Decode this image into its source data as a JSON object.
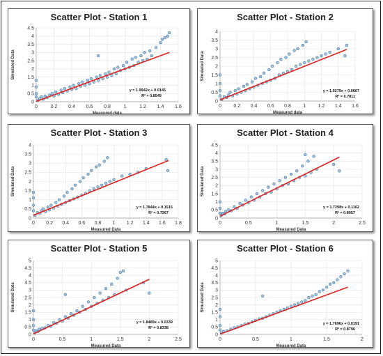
{
  "chart_data": [
    {
      "type": "scatter",
      "title": "Scatter Plot - Station 1",
      "xlabel": "Measured data",
      "ylabel": "Simulated Data",
      "xlim": [
        0,
        1.6
      ],
      "ylim": [
        0,
        4.5
      ],
      "xticks": [
        "0",
        "0.2",
        "0.4",
        "0.6",
        "0.8",
        "1",
        "1.2",
        "1.4",
        "1.6"
      ],
      "yticks": [
        "0",
        "0.5",
        "1",
        "1.5",
        "2",
        "2.5",
        "3",
        "3.5",
        "4",
        "4.5"
      ],
      "trend_equation": "y = 1.9942x + 0.0145",
      "r_squared": "R² = 0.8545",
      "slope": 1.9942,
      "intercept": 0.0145,
      "x_max_data": 1.5,
      "points": [
        [
          0.02,
          0.1
        ],
        [
          0.04,
          0.2
        ],
        [
          0.06,
          0.3
        ],
        [
          0.08,
          0.15
        ],
        [
          0.1,
          0.35
        ],
        [
          0.12,
          0.25
        ],
        [
          0.15,
          0.4
        ],
        [
          0.18,
          0.5
        ],
        [
          0.2,
          0.35
        ],
        [
          0.22,
          0.6
        ],
        [
          0.25,
          0.45
        ],
        [
          0.28,
          0.7
        ],
        [
          0.3,
          0.55
        ],
        [
          0.32,
          0.8
        ],
        [
          0.35,
          0.65
        ],
        [
          0.38,
          0.9
        ],
        [
          0.4,
          0.75
        ],
        [
          0.42,
          1.0
        ],
        [
          0.45,
          0.8
        ],
        [
          0.48,
          1.1
        ],
        [
          0.5,
          0.95
        ],
        [
          0.52,
          1.2
        ],
        [
          0.55,
          1.0
        ],
        [
          0.58,
          1.3
        ],
        [
          0.6,
          1.1
        ],
        [
          0.62,
          1.4
        ],
        [
          0.65,
          1.2
        ],
        [
          0.68,
          1.5
        ],
        [
          0.7,
          1.3
        ],
        [
          0.72,
          1.6
        ],
        [
          0.75,
          1.4
        ],
        [
          0.78,
          1.7
        ],
        [
          0.8,
          1.5
        ],
        [
          0.82,
          1.8
        ],
        [
          0.85,
          1.6
        ],
        [
          0.88,
          2.0
        ],
        [
          0.9,
          1.7
        ],
        [
          0.92,
          2.1
        ],
        [
          0.95,
          1.9
        ],
        [
          0.98,
          2.2
        ],
        [
          1.0,
          2.0
        ],
        [
          1.02,
          2.4
        ],
        [
          1.05,
          2.1
        ],
        [
          1.08,
          2.6
        ],
        [
          1.1,
          2.2
        ],
        [
          1.12,
          2.7
        ],
        [
          1.15,
          2.4
        ],
        [
          1.18,
          2.8
        ],
        [
          1.2,
          2.5
        ],
        [
          1.22,
          3.0
        ],
        [
          1.25,
          2.6
        ],
        [
          1.28,
          3.1
        ],
        [
          1.3,
          2.8
        ],
        [
          1.35,
          3.3
        ],
        [
          1.4,
          3.6
        ],
        [
          1.42,
          3.8
        ],
        [
          1.45,
          3.9
        ],
        [
          1.48,
          4.0
        ],
        [
          1.5,
          4.2
        ],
        [
          0.7,
          2.8
        ],
        [
          0.0,
          0.5
        ],
        [
          0.0,
          0.9
        ],
        [
          0.0,
          1.3
        ],
        [
          0.0,
          0.3
        ]
      ]
    },
    {
      "type": "scatter",
      "title": "Scatter Plot - Station 2",
      "xlabel": "Measured data",
      "ylabel": "Simulated Data",
      "xlim": [
        0,
        1.6
      ],
      "ylim": [
        0,
        4
      ],
      "xticks": [
        "0",
        "0.2",
        "0.4",
        "0.6",
        "0.8",
        "1",
        "1.2",
        "1.4",
        "1.6"
      ],
      "yticks": [
        "0",
        "0.5",
        "1",
        "1.5",
        "2",
        "2.5",
        "3",
        "3.5",
        "4"
      ],
      "trend_equation": "y = 1.9279x + 0.0667",
      "r_squared": "R² = 0.7811",
      "slope": 1.9279,
      "intercept": 0.0667,
      "x_max_data": 1.5,
      "points": [
        [
          0.02,
          0.1
        ],
        [
          0.05,
          0.25
        ],
        [
          0.08,
          0.2
        ],
        [
          0.1,
          0.35
        ],
        [
          0.12,
          0.5
        ],
        [
          0.15,
          0.3
        ],
        [
          0.18,
          0.6
        ],
        [
          0.2,
          0.4
        ],
        [
          0.22,
          0.7
        ],
        [
          0.25,
          0.5
        ],
        [
          0.28,
          0.85
        ],
        [
          0.3,
          0.6
        ],
        [
          0.32,
          0.95
        ],
        [
          0.35,
          0.7
        ],
        [
          0.38,
          1.1
        ],
        [
          0.4,
          0.8
        ],
        [
          0.42,
          1.3
        ],
        [
          0.45,
          0.9
        ],
        [
          0.48,
          1.4
        ],
        [
          0.5,
          1.0
        ],
        [
          0.52,
          1.6
        ],
        [
          0.55,
          1.1
        ],
        [
          0.58,
          1.8
        ],
        [
          0.6,
          1.2
        ],
        [
          0.62,
          2.0
        ],
        [
          0.65,
          1.3
        ],
        [
          0.68,
          2.2
        ],
        [
          0.7,
          1.5
        ],
        [
          0.72,
          2.4
        ],
        [
          0.75,
          1.6
        ],
        [
          0.78,
          2.5
        ],
        [
          0.8,
          1.7
        ],
        [
          0.82,
          2.7
        ],
        [
          0.85,
          1.8
        ],
        [
          0.88,
          2.9
        ],
        [
          0.9,
          2.0
        ],
        [
          0.92,
          3.0
        ],
        [
          0.95,
          2.1
        ],
        [
          0.98,
          3.2
        ],
        [
          1.0,
          2.2
        ],
        [
          1.02,
          3.4
        ],
        [
          1.05,
          2.3
        ],
        [
          1.1,
          2.4
        ],
        [
          1.15,
          2.5
        ],
        [
          1.2,
          2.6
        ],
        [
          1.25,
          2.7
        ],
        [
          1.3,
          2.8
        ],
        [
          1.4,
          3.0
        ],
        [
          1.5,
          3.2
        ],
        [
          1.48,
          2.6
        ],
        [
          0.0,
          0.6
        ],
        [
          0.0,
          1.0
        ],
        [
          0.0,
          1.5
        ],
        [
          0.0,
          0.3
        ]
      ]
    },
    {
      "type": "scatter",
      "title": "Scatter Plot - Station 3",
      "xlabel": "Measured Data",
      "ylabel": "Simulated Data",
      "xlim": [
        0,
        1.8
      ],
      "ylim": [
        0,
        4
      ],
      "xticks": [
        "0",
        "0.2",
        "0.4",
        "0.6",
        "0.8",
        "1",
        "1.2",
        "1.4",
        "1.6",
        "1.8"
      ],
      "yticks": [
        "0",
        "0.5",
        "1",
        "1.5",
        "2",
        "2.5",
        "3",
        "3.5",
        "4"
      ],
      "trend_equation": "y = 1.7844x + 0.1515",
      "r_squared": "R² = 0.7267",
      "slope": 1.7844,
      "intercept": 0.1515,
      "x_max_data": 1.68,
      "points": [
        [
          0.02,
          0.15
        ],
        [
          0.05,
          0.3
        ],
        [
          0.08,
          0.25
        ],
        [
          0.1,
          0.4
        ],
        [
          0.12,
          0.5
        ],
        [
          0.15,
          0.35
        ],
        [
          0.18,
          0.6
        ],
        [
          0.2,
          0.45
        ],
        [
          0.22,
          0.7
        ],
        [
          0.25,
          0.55
        ],
        [
          0.28,
          0.85
        ],
        [
          0.3,
          0.65
        ],
        [
          0.32,
          1.0
        ],
        [
          0.35,
          0.75
        ],
        [
          0.38,
          1.2
        ],
        [
          0.4,
          0.85
        ],
        [
          0.42,
          1.4
        ],
        [
          0.45,
          0.95
        ],
        [
          0.48,
          1.6
        ],
        [
          0.5,
          1.05
        ],
        [
          0.52,
          1.8
        ],
        [
          0.55,
          1.15
        ],
        [
          0.58,
          2.0
        ],
        [
          0.6,
          1.25
        ],
        [
          0.62,
          2.2
        ],
        [
          0.65,
          1.35
        ],
        [
          0.68,
          2.4
        ],
        [
          0.7,
          1.5
        ],
        [
          0.72,
          2.6
        ],
        [
          0.75,
          1.6
        ],
        [
          0.78,
          2.8
        ],
        [
          0.8,
          1.7
        ],
        [
          0.82,
          2.9
        ],
        [
          0.85,
          1.8
        ],
        [
          0.88,
          3.1
        ],
        [
          0.9,
          1.9
        ],
        [
          0.92,
          3.3
        ],
        [
          0.95,
          2.0
        ],
        [
          1.0,
          2.1
        ],
        [
          1.1,
          2.3
        ],
        [
          1.2,
          2.4
        ],
        [
          1.3,
          2.5
        ],
        [
          1.4,
          2.7
        ],
        [
          1.65,
          3.2
        ],
        [
          1.67,
          2.6
        ],
        [
          0.0,
          0.7
        ],
        [
          0.0,
          1.1
        ],
        [
          0.0,
          1.4
        ],
        [
          0.0,
          0.4
        ]
      ]
    },
    {
      "type": "scatter",
      "title": "Scatter Plot - Station 4",
      "xlabel": "Measured Data",
      "ylabel": "Simulated Data",
      "xlim": [
        0,
        2.5
      ],
      "ylim": [
        0,
        4.5
      ],
      "xticks": [
        "0",
        "0.5",
        "1",
        "1.5",
        "2",
        "2.5"
      ],
      "yticks": [
        "0",
        "0.5",
        "1",
        "1.5",
        "2",
        "2.5",
        "3",
        "3.5",
        "4",
        "4.5"
      ],
      "trend_equation": "y = 1.7298x + 0.1162",
      "r_squared": "R² = 0.8057",
      "slope": 1.7298,
      "intercept": 0.1162,
      "x_max_data": 2.1,
      "points": [
        [
          0.02,
          0.15
        ],
        [
          0.05,
          0.3
        ],
        [
          0.08,
          0.25
        ],
        [
          0.1,
          0.4
        ],
        [
          0.15,
          0.5
        ],
        [
          0.2,
          0.45
        ],
        [
          0.25,
          0.7
        ],
        [
          0.3,
          0.6
        ],
        [
          0.35,
          0.9
        ],
        [
          0.4,
          0.8
        ],
        [
          0.45,
          1.1
        ],
        [
          0.5,
          0.95
        ],
        [
          0.55,
          1.3
        ],
        [
          0.6,
          1.1
        ],
        [
          0.65,
          1.5
        ],
        [
          0.7,
          1.3
        ],
        [
          0.75,
          1.7
        ],
        [
          0.8,
          1.5
        ],
        [
          0.85,
          1.9
        ],
        [
          0.9,
          1.6
        ],
        [
          0.95,
          2.1
        ],
        [
          1.0,
          1.8
        ],
        [
          1.05,
          2.3
        ],
        [
          1.1,
          2.0
        ],
        [
          1.15,
          2.5
        ],
        [
          1.2,
          2.1
        ],
        [
          1.25,
          2.7
        ],
        [
          1.3,
          2.3
        ],
        [
          1.35,
          2.9
        ],
        [
          1.4,
          2.5
        ],
        [
          1.45,
          3.2
        ],
        [
          1.5,
          2.6
        ],
        [
          1.55,
          3.5
        ],
        [
          1.6,
          2.8
        ],
        [
          1.65,
          3.8
        ],
        [
          1.7,
          3.0
        ],
        [
          1.5,
          3.9
        ],
        [
          2.0,
          3.3
        ],
        [
          2.1,
          2.9
        ],
        [
          0.0,
          0.6
        ],
        [
          0.0,
          1.0
        ],
        [
          0.0,
          0.3
        ]
      ]
    },
    {
      "type": "scatter",
      "title": "Scatter Plot - Station 5",
      "xlabel": "Measured Data",
      "ylabel": "Simulated Data",
      "xlim": [
        0,
        2.5
      ],
      "ylim": [
        0,
        5
      ],
      "xticks": [
        "0",
        "0.5",
        "1",
        "1.5",
        "2",
        "2.5"
      ],
      "yticks": [
        "0",
        "0.5",
        "1",
        "1.5",
        "2",
        "2.5",
        "3",
        "3.5",
        "4",
        "4.5",
        "5"
      ],
      "trend_equation": "y = 1.8489x + 0.0339",
      "r_squared": "R² = 0.8338",
      "slope": 1.8489,
      "intercept": 0.0339,
      "x_max_data": 2.0,
      "points": [
        [
          0.02,
          0.1
        ],
        [
          0.05,
          0.25
        ],
        [
          0.08,
          0.2
        ],
        [
          0.1,
          0.35
        ],
        [
          0.15,
          0.4
        ],
        [
          0.2,
          0.45
        ],
        [
          0.25,
          0.6
        ],
        [
          0.3,
          0.55
        ],
        [
          0.35,
          0.8
        ],
        [
          0.4,
          0.75
        ],
        [
          0.45,
          1.0
        ],
        [
          0.5,
          0.9
        ],
        [
          0.55,
          1.2
        ],
        [
          0.6,
          1.1
        ],
        [
          0.65,
          1.4
        ],
        [
          0.7,
          1.3
        ],
        [
          0.75,
          1.6
        ],
        [
          0.8,
          1.5
        ],
        [
          0.85,
          1.9
        ],
        [
          0.9,
          1.7
        ],
        [
          0.95,
          2.2
        ],
        [
          1.0,
          1.9
        ],
        [
          1.05,
          2.5
        ],
        [
          1.1,
          2.1
        ],
        [
          1.15,
          2.8
        ],
        [
          1.2,
          2.3
        ],
        [
          1.25,
          3.1
        ],
        [
          1.3,
          2.5
        ],
        [
          1.35,
          3.4
        ],
        [
          1.4,
          2.7
        ],
        [
          1.45,
          3.8
        ],
        [
          1.5,
          4.2
        ],
        [
          1.55,
          4.3
        ],
        [
          1.6,
          3.0
        ],
        [
          1.9,
          3.5
        ],
        [
          2.0,
          2.8
        ],
        [
          0.55,
          2.7
        ],
        [
          0.0,
          0.6
        ],
        [
          0.0,
          1.0
        ],
        [
          0.0,
          1.6
        ],
        [
          0.0,
          0.3
        ]
      ]
    },
    {
      "type": "scatter",
      "title": "Scatter Plot - Station 6",
      "xlabel": "Measured Data",
      "ylabel": "Simulated Data",
      "xlim": [
        0,
        2
      ],
      "ylim": [
        0,
        5
      ],
      "xticks": [
        "0",
        "0.5",
        "1",
        "1.5",
        "2"
      ],
      "yticks": [
        "0",
        "0.5",
        "1",
        "1.5",
        "2",
        "2.5",
        "3",
        "3.5",
        "4",
        "4.5",
        "5"
      ],
      "trend_equation": "y = 1.7696x + 0.0191",
      "r_squared": "R² = 0.8796",
      "slope": 1.7696,
      "intercept": 0.0191,
      "x_max_data": 1.8,
      "points": [
        [
          0.02,
          0.1
        ],
        [
          0.05,
          0.2
        ],
        [
          0.1,
          0.25
        ],
        [
          0.15,
          0.35
        ],
        [
          0.2,
          0.45
        ],
        [
          0.25,
          0.5
        ],
        [
          0.3,
          0.6
        ],
        [
          0.35,
          0.7
        ],
        [
          0.4,
          0.75
        ],
        [
          0.45,
          0.85
        ],
        [
          0.5,
          0.95
        ],
        [
          0.55,
          1.05
        ],
        [
          0.6,
          1.1
        ],
        [
          0.65,
          1.2
        ],
        [
          0.7,
          1.3
        ],
        [
          0.75,
          1.4
        ],
        [
          0.8,
          1.5
        ],
        [
          0.85,
          1.6
        ],
        [
          0.9,
          1.7
        ],
        [
          0.95,
          1.8
        ],
        [
          1.0,
          1.9
        ],
        [
          1.05,
          2.0
        ],
        [
          1.1,
          2.1
        ],
        [
          1.15,
          2.2
        ],
        [
          1.2,
          2.3
        ],
        [
          1.25,
          2.5
        ],
        [
          1.3,
          2.6
        ],
        [
          1.35,
          2.7
        ],
        [
          1.4,
          2.9
        ],
        [
          1.45,
          3.0
        ],
        [
          1.5,
          3.2
        ],
        [
          1.55,
          3.4
        ],
        [
          1.6,
          3.5
        ],
        [
          1.65,
          3.7
        ],
        [
          1.7,
          3.9
        ],
        [
          1.75,
          4.1
        ],
        [
          1.8,
          4.3
        ],
        [
          0.6,
          2.6
        ],
        [
          0.0,
          0.6
        ],
        [
          0.0,
          1.2
        ],
        [
          0.0,
          1.7
        ],
        [
          0.0,
          0.3
        ]
      ]
    }
  ]
}
